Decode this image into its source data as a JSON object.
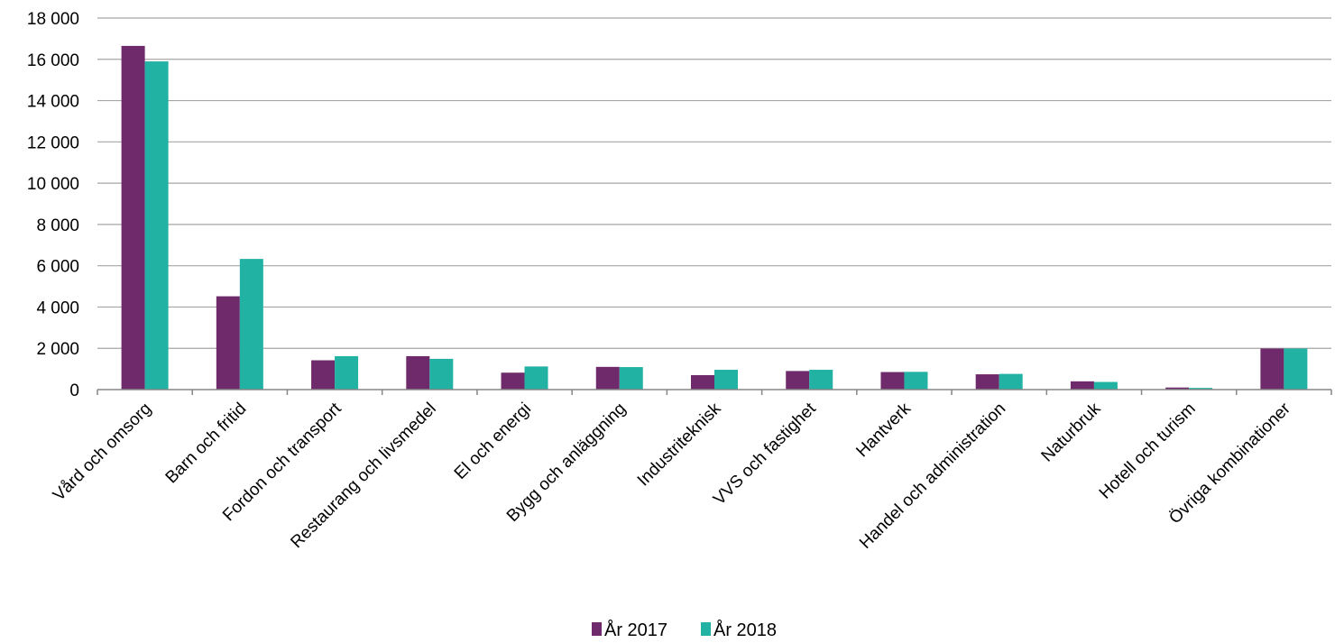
{
  "chart_data": {
    "type": "bar",
    "categories": [
      "Vård och omsorg",
      "Barn och fritid",
      "Fordon och transport",
      "Restaurang och livsmedel",
      "El och energi",
      "Bygg och anläggning",
      "Industriteknisk",
      "VVS och fastighet",
      "Hantverk",
      "Handel och administration",
      "Naturbruk",
      "Hotell och turism",
      "Övriga kombinationer"
    ],
    "series": [
      {
        "name": "År 2017",
        "color": "#6e2a6b",
        "values": [
          16650,
          4520,
          1420,
          1620,
          820,
          1100,
          700,
          900,
          850,
          740,
          400,
          100,
          1990
        ]
      },
      {
        "name": "År 2018",
        "color": "#22b2a4",
        "values": [
          15900,
          6330,
          1620,
          1490,
          1120,
          1090,
          960,
          960,
          860,
          760,
          370,
          80,
          1990
        ]
      }
    ],
    "y_ticks": [
      "0",
      "2 000",
      "4 000",
      "6 000",
      "8 000",
      "10 000",
      "12 000",
      "14 000",
      "16 000",
      "18 000"
    ],
    "ylim": [
      0,
      18000
    ],
    "grid": true,
    "legend_position": "bottom",
    "title": "",
    "xlabel": "",
    "ylabel": ""
  }
}
